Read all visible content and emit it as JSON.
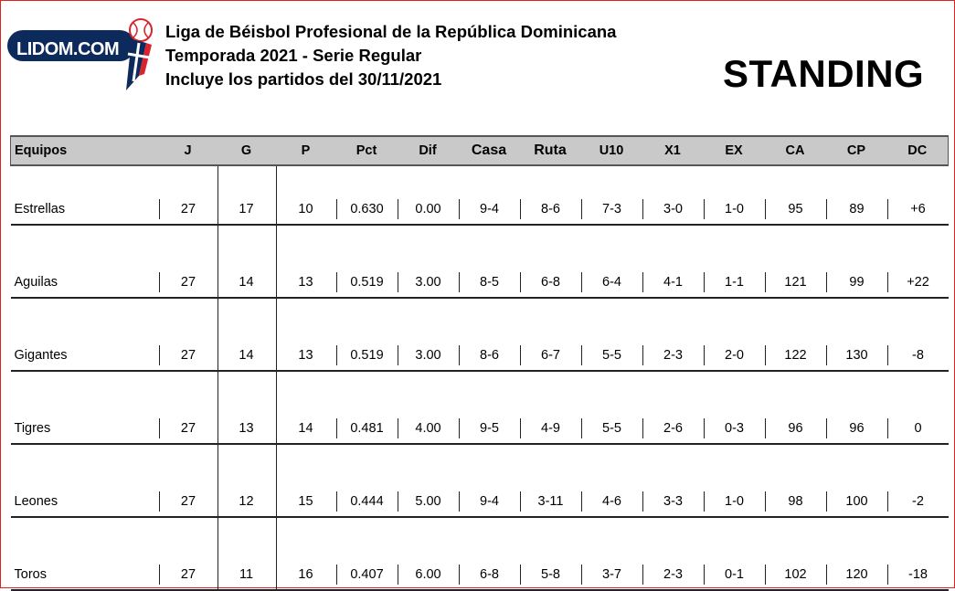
{
  "header": {
    "logo_text": "LIDOM.COM",
    "line1": "Liga de Béisbol Profesional de la República Dominicana",
    "line2": "Temporada 2021 - Serie Regular",
    "line3": "Incluye los partidos del 30/11/2021",
    "title": "STANDING"
  },
  "table": {
    "columns": [
      "Equipos",
      "J",
      "G",
      "P",
      "Pct",
      "Dif",
      "Casa",
      "Ruta",
      "U10",
      "X1",
      "EX",
      "CA",
      "CP",
      "DC"
    ],
    "rows": [
      [
        "Estrellas",
        "27",
        "17",
        "10",
        "0.630",
        "0.00",
        "9-4",
        "8-6",
        "7-3",
        "3-0",
        "1-0",
        "95",
        "89",
        "+6"
      ],
      [
        "Aguilas",
        "27",
        "14",
        "13",
        "0.519",
        "3.00",
        "8-5",
        "6-8",
        "6-4",
        "4-1",
        "1-1",
        "121",
        "99",
        "+22"
      ],
      [
        "Gigantes",
        "27",
        "14",
        "13",
        "0.519",
        "3.00",
        "8-6",
        "6-7",
        "5-5",
        "2-3",
        "2-0",
        "122",
        "130",
        "-8"
      ],
      [
        "Tigres",
        "27",
        "13",
        "14",
        "0.481",
        "4.00",
        "9-5",
        "4-9",
        "5-5",
        "2-6",
        "0-3",
        "96",
        "96",
        "0"
      ],
      [
        "Leones",
        "27",
        "12",
        "15",
        "0.444",
        "5.00",
        "9-4",
        "3-11",
        "4-6",
        "3-3",
        "1-0",
        "98",
        "100",
        "-2"
      ],
      [
        "Toros",
        "27",
        "11",
        "16",
        "0.407",
        "6.00",
        "6-8",
        "5-8",
        "3-7",
        "2-3",
        "0-1",
        "102",
        "120",
        "-18"
      ]
    ]
  },
  "colors": {
    "logo_navy": "#0d2a5c",
    "logo_red": "#d9232d",
    "header_bg": "#c9c9c9",
    "frame": "#dd2222"
  }
}
